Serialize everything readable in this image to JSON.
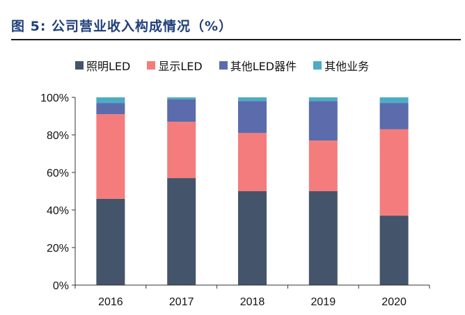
{
  "figure_title": "图 5: 公司营业收入构成情况（%）",
  "chart_data": {
    "type": "bar",
    "stacked": true,
    "categories": [
      "2016",
      "2017",
      "2018",
      "2019",
      "2020"
    ],
    "series": [
      {
        "name": "照明LED",
        "color": "#44546a",
        "values": [
          46,
          57,
          50,
          50,
          37
        ]
      },
      {
        "name": "显示LED",
        "color": "#f47c7c",
        "values": [
          45,
          30,
          31,
          27,
          46
        ]
      },
      {
        "name": "其他LED器件",
        "color": "#5b6bab",
        "values": [
          6,
          12,
          17,
          21,
          14
        ]
      },
      {
        "name": "其他业务",
        "color": "#4bacc6",
        "values": [
          3,
          1,
          2,
          2,
          3
        ]
      }
    ],
    "ylim": [
      0,
      100
    ],
    "yticks": [
      "0%",
      "20%",
      "40%",
      "60%",
      "80%",
      "100%"
    ],
    "ytick_values": [
      0,
      20,
      40,
      60,
      80,
      100
    ],
    "grid": false,
    "legend_position": "top"
  }
}
